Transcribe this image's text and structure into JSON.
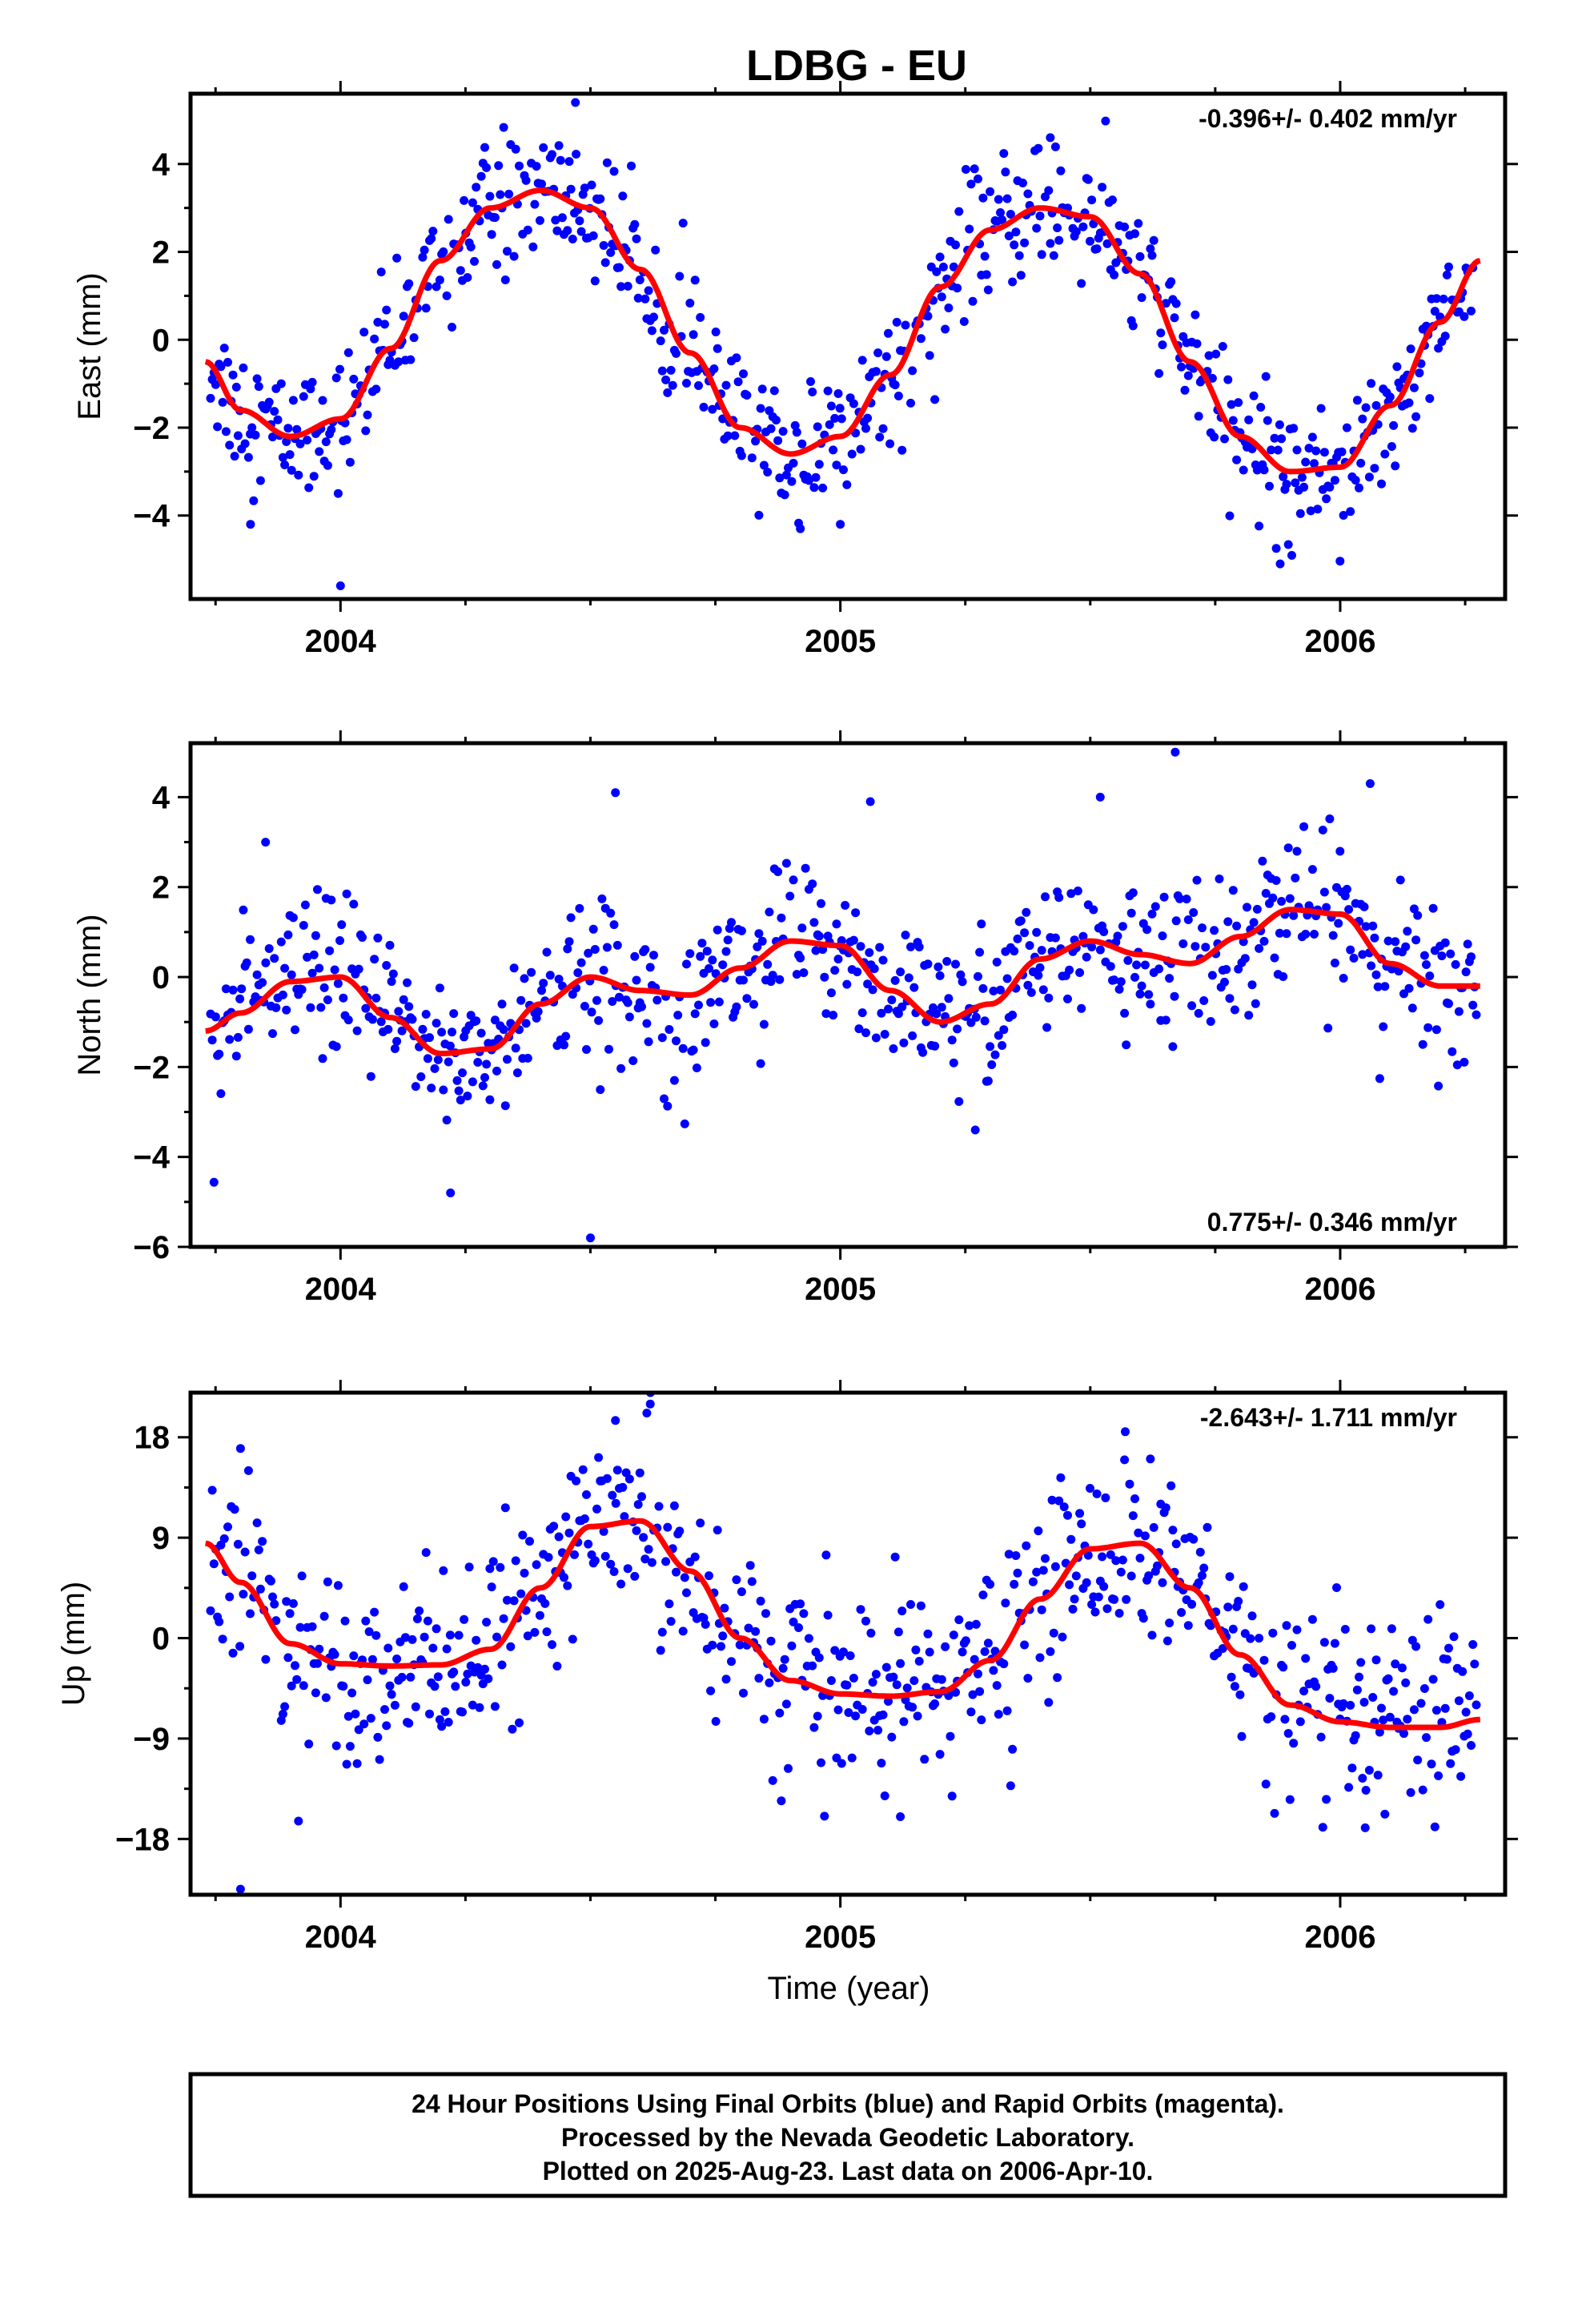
{
  "chart_data": {
    "type": "scatter",
    "title": "LDBG - EU",
    "xlabel": "Time (year)",
    "x_ticks": [
      "2004",
      "2005",
      "2006"
    ],
    "xlim": [
      2003.7,
      2006.33
    ],
    "colors": {
      "points": "#0000ff",
      "fit": "#ff0000",
      "frame": "#000000"
    },
    "footer": [
      "24 Hour Positions Using Final Orbits (blue) and Rapid Orbits (magenta).",
      "Processed by the Nevada Geodetic Laboratory.",
      "Plotted on 2025-Aug-23. Last data on 2006-Apr-10."
    ],
    "panels": [
      {
        "ylabel": "East (mm)",
        "ylim": [
          -5.9,
          5.6
        ],
        "yticks": [
          -4,
          -2,
          0,
          2,
          4
        ],
        "ytick_labels": [
          "−4",
          "−2",
          "0",
          "2",
          "4"
        ],
        "rate": "-0.396+/- 0.402 mm/yr",
        "rate_pos": "top-right",
        "fit": {
          "x": [
            2003.73,
            2003.8,
            2003.9,
            2004.0,
            2004.1,
            2004.2,
            2004.3,
            2004.4,
            2004.5,
            2004.6,
            2004.7,
            2004.8,
            2004.9,
            2005.0,
            2005.1,
            2005.2,
            2005.3,
            2005.4,
            2005.5,
            2005.6,
            2005.7,
            2005.8,
            2005.9,
            2006.0,
            2006.1,
            2006.2,
            2006.28
          ],
          "y": [
            -0.5,
            -1.6,
            -2.2,
            -1.8,
            -0.2,
            1.8,
            3.0,
            3.4,
            3.0,
            1.6,
            -0.3,
            -2.0,
            -2.6,
            -2.2,
            -0.8,
            1.2,
            2.5,
            3.0,
            2.8,
            1.5,
            -0.5,
            -2.2,
            -3.0,
            -2.9,
            -1.5,
            0.4,
            1.8
          ]
        },
        "scatter": {
          "sd": 0.75,
          "outliers": [
            [
              2004.47,
              5.4
            ],
            [
              2005.42,
              4.6
            ],
            [
              2004.0,
              -5.6
            ],
            [
              2005.88,
              -5.1
            ],
            [
              2004.92,
              -4.3
            ],
            [
              2005.0,
              -4.2
            ],
            [
              2003.82,
              -4.2
            ]
          ]
        }
      },
      {
        "ylabel": "North (mm)",
        "ylim": [
          -6.0,
          5.2
        ],
        "yticks": [
          -6,
          -4,
          -2,
          0,
          2,
          4
        ],
        "ytick_labels": [
          "−6",
          "−4",
          "−2",
          "0",
          "2",
          "4"
        ],
        "rate": "0.775+/- 0.346 mm/yr",
        "rate_pos": "bottom-right",
        "fit": {
          "x": [
            2003.73,
            2003.8,
            2003.9,
            2004.0,
            2004.1,
            2004.2,
            2004.3,
            2004.4,
            2004.5,
            2004.6,
            2004.7,
            2004.8,
            2004.9,
            2005.0,
            2005.1,
            2005.2,
            2005.3,
            2005.4,
            2005.5,
            2005.6,
            2005.7,
            2005.8,
            2005.9,
            2006.0,
            2006.1,
            2006.2,
            2006.28
          ],
          "y": [
            -1.2,
            -0.8,
            -0.1,
            0.0,
            -0.9,
            -1.7,
            -1.6,
            -0.6,
            0.0,
            -0.3,
            -0.4,
            0.2,
            0.8,
            0.7,
            -0.3,
            -1.0,
            -0.6,
            0.4,
            0.8,
            0.5,
            0.3,
            0.9,
            1.5,
            1.4,
            0.3,
            -0.2,
            -0.2
          ]
        },
        "scatter": {
          "sd": 0.85,
          "outliers": [
            [
              2004.5,
              -5.8
            ],
            [
              2004.22,
              -4.8
            ],
            [
              2004.55,
              4.1
            ],
            [
              2005.06,
              3.9
            ],
            [
              2005.67,
              5.0
            ],
            [
              2006.06,
              4.3
            ],
            [
              2005.52,
              4.0
            ],
            [
              2003.85,
              3.0
            ],
            [
              2005.27,
              -3.4
            ]
          ]
        }
      },
      {
        "ylabel": "Up (mm)",
        "ylim": [
          -23.0,
          22.0
        ],
        "yticks": [
          -18,
          -9,
          0,
          9,
          18
        ],
        "ytick_labels": [
          "−18",
          "−9",
          "0",
          "9",
          "18"
        ],
        "rate": "-2.643+/- 1.711 mm/yr",
        "rate_pos": "top-right",
        "fit": {
          "x": [
            2003.73,
            2003.8,
            2003.9,
            2004.0,
            2004.1,
            2004.2,
            2004.3,
            2004.4,
            2004.5,
            2004.6,
            2004.7,
            2004.8,
            2004.9,
            2005.0,
            2005.1,
            2005.2,
            2005.3,
            2005.4,
            2005.5,
            2005.6,
            2005.7,
            2005.8,
            2005.9,
            2006.0,
            2006.1,
            2006.2,
            2006.28
          ],
          "y": [
            8.5,
            5.0,
            -0.5,
            -2.3,
            -2.5,
            -2.4,
            -1.0,
            4.5,
            10.0,
            10.5,
            6.0,
            0.0,
            -3.8,
            -5.0,
            -5.2,
            -4.8,
            -2.0,
            3.5,
            8.0,
            8.5,
            4.5,
            -1.5,
            -6.0,
            -7.5,
            -8.0,
            -8.0,
            -7.3
          ]
        },
        "scatter": {
          "sd": 4.2,
          "outliers": [
            [
              2003.8,
              -22.5
            ],
            [
              2004.62,
              22.0
            ],
            [
              2003.8,
              17.0
            ],
            [
              2005.57,
              18.5
            ],
            [
              2004.55,
              19.5
            ],
            [
              2005.12,
              -16.0
            ],
            [
              2006.05,
              -17.0
            ]
          ]
        }
      }
    ]
  }
}
